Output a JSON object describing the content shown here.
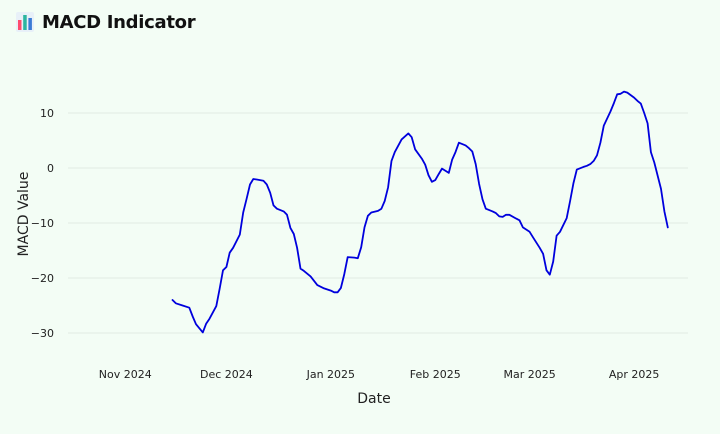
{
  "header": {
    "title": "MACD Indicator",
    "icon": "bar-chart-icon"
  },
  "colors": {
    "line": "#0000dd",
    "grid": "#e2ece4",
    "background": "#f3fdf5"
  },
  "chart_data": {
    "type": "line",
    "title": "",
    "xlabel": "Date",
    "ylabel": "MACD Value",
    "grid": true,
    "xlim": [
      "2024-10-15",
      "2025-04-17"
    ],
    "ylim": [
      -34,
      16
    ],
    "x_ticks": [
      {
        "date": "2024-11-01",
        "label": "Nov 2024"
      },
      {
        "date": "2024-12-01",
        "label": "Dec 2024"
      },
      {
        "date": "2025-01-01",
        "label": "Jan 2025"
      },
      {
        "date": "2025-02-01",
        "label": "Feb 2025"
      },
      {
        "date": "2025-03-01",
        "label": "Mar 2025"
      },
      {
        "date": "2025-04-01",
        "label": "Apr 2025"
      }
    ],
    "y_ticks": [
      {
        "value": 10,
        "label": "10"
      },
      {
        "value": 0,
        "label": "0"
      },
      {
        "value": -10,
        "label": "−10"
      },
      {
        "value": -20,
        "label": "−20"
      },
      {
        "value": -30,
        "label": "−30"
      }
    ],
    "series": [
      {
        "color": "#0000dd",
        "points": [
          [
            "2024-11-15",
            -24.0
          ],
          [
            "2024-11-16",
            -24.6
          ],
          [
            "2024-11-18",
            -25.0
          ],
          [
            "2024-11-20",
            -25.4
          ],
          [
            "2024-11-21",
            -27.0
          ],
          [
            "2024-11-22",
            -28.4
          ],
          [
            "2024-11-24",
            -29.9
          ],
          [
            "2024-11-25",
            -28.3
          ],
          [
            "2024-11-26",
            -27.4
          ],
          [
            "2024-11-28",
            -25.1
          ],
          [
            "2024-11-29",
            -22.0
          ],
          [
            "2024-11-30",
            -18.6
          ],
          [
            "2024-12-01",
            -18.0
          ],
          [
            "2024-12-02",
            -15.4
          ],
          [
            "2024-12-03",
            -14.5
          ],
          [
            "2024-12-05",
            -12.1
          ],
          [
            "2024-12-06",
            -8.1
          ],
          [
            "2024-12-07",
            -5.6
          ],
          [
            "2024-12-08",
            -3.0
          ],
          [
            "2024-12-09",
            -2.0
          ],
          [
            "2024-12-10",
            -2.1
          ],
          [
            "2024-12-11",
            -2.2
          ],
          [
            "2024-12-12",
            -2.3
          ],
          [
            "2024-12-13",
            -3.0
          ],
          [
            "2024-12-14",
            -4.5
          ],
          [
            "2024-12-15",
            -6.8
          ],
          [
            "2024-12-16",
            -7.4
          ],
          [
            "2024-12-18",
            -7.9
          ],
          [
            "2024-12-19",
            -8.5
          ],
          [
            "2024-12-20",
            -10.9
          ],
          [
            "2024-12-21",
            -12.0
          ],
          [
            "2024-12-22",
            -14.5
          ],
          [
            "2024-12-23",
            -18.3
          ],
          [
            "2024-12-24",
            -18.7
          ],
          [
            "2024-12-26",
            -19.7
          ],
          [
            "2024-12-27",
            -20.5
          ],
          [
            "2024-12-28",
            -21.3
          ],
          [
            "2024-12-30",
            -21.9
          ],
          [
            "2025-01-01",
            -22.3
          ],
          [
            "2025-01-02",
            -22.6
          ],
          [
            "2025-01-03",
            -22.6
          ],
          [
            "2025-01-04",
            -21.8
          ],
          [
            "2025-01-05",
            -19.3
          ],
          [
            "2025-01-06",
            -16.2
          ],
          [
            "2025-01-08",
            -16.3
          ],
          [
            "2025-01-09",
            -16.4
          ],
          [
            "2025-01-10",
            -14.4
          ],
          [
            "2025-01-11",
            -10.8
          ],
          [
            "2025-01-12",
            -8.7
          ],
          [
            "2025-01-13",
            -8.1
          ],
          [
            "2025-01-15",
            -7.8
          ],
          [
            "2025-01-16",
            -7.4
          ],
          [
            "2025-01-17",
            -6.0
          ],
          [
            "2025-01-18",
            -3.5
          ],
          [
            "2025-01-19",
            1.3
          ],
          [
            "2025-01-20",
            2.9
          ],
          [
            "2025-01-22",
            5.2
          ],
          [
            "2025-01-24",
            6.3
          ],
          [
            "2025-01-25",
            5.6
          ],
          [
            "2025-01-26",
            3.4
          ],
          [
            "2025-01-28",
            1.7
          ],
          [
            "2025-01-29",
            0.6
          ],
          [
            "2025-01-30",
            -1.3
          ],
          [
            "2025-01-31",
            -2.5
          ],
          [
            "2025-02-01",
            -2.2
          ],
          [
            "2025-02-02",
            -1.1
          ],
          [
            "2025-02-03",
            -0.1
          ],
          [
            "2025-02-05",
            -0.9
          ],
          [
            "2025-02-06",
            1.5
          ],
          [
            "2025-02-07",
            2.9
          ],
          [
            "2025-02-08",
            4.6
          ],
          [
            "2025-02-10",
            4.1
          ],
          [
            "2025-02-11",
            3.6
          ],
          [
            "2025-02-12",
            3.0
          ],
          [
            "2025-02-13",
            0.7
          ],
          [
            "2025-02-14",
            -2.9
          ],
          [
            "2025-02-15",
            -5.7
          ],
          [
            "2025-02-16",
            -7.4
          ],
          [
            "2025-02-18",
            -7.9
          ],
          [
            "2025-02-19",
            -8.2
          ],
          [
            "2025-02-20",
            -8.8
          ],
          [
            "2025-02-21",
            -8.9
          ],
          [
            "2025-02-22",
            -8.5
          ],
          [
            "2025-02-23",
            -8.5
          ],
          [
            "2025-02-25",
            -9.2
          ],
          [
            "2025-02-26",
            -9.5
          ],
          [
            "2025-02-27",
            -10.8
          ],
          [
            "2025-03-01",
            -11.6
          ],
          [
            "2025-03-02",
            -12.6
          ],
          [
            "2025-03-04",
            -14.5
          ],
          [
            "2025-03-05",
            -15.6
          ],
          [
            "2025-03-06",
            -18.6
          ],
          [
            "2025-03-07",
            -19.4
          ],
          [
            "2025-03-08",
            -17.0
          ],
          [
            "2025-03-09",
            -12.3
          ],
          [
            "2025-03-10",
            -11.6
          ],
          [
            "2025-03-12",
            -9.1
          ],
          [
            "2025-03-13",
            -6.0
          ],
          [
            "2025-03-14",
            -2.8
          ],
          [
            "2025-03-15",
            -0.3
          ],
          [
            "2025-03-17",
            0.2
          ],
          [
            "2025-03-18",
            0.4
          ],
          [
            "2025-03-19",
            0.7
          ],
          [
            "2025-03-20",
            1.3
          ],
          [
            "2025-03-21",
            2.3
          ],
          [
            "2025-03-22",
            4.6
          ],
          [
            "2025-03-23",
            7.7
          ],
          [
            "2025-03-25",
            10.3
          ],
          [
            "2025-03-26",
            11.8
          ],
          [
            "2025-03-27",
            13.4
          ],
          [
            "2025-03-28",
            13.5
          ],
          [
            "2025-03-29",
            13.9
          ],
          [
            "2025-03-30",
            13.7
          ],
          [
            "2025-04-01",
            12.8
          ],
          [
            "2025-04-02",
            12.2
          ],
          [
            "2025-04-03",
            11.7
          ],
          [
            "2025-04-04",
            10.0
          ],
          [
            "2025-04-05",
            8.1
          ],
          [
            "2025-04-06",
            2.9
          ],
          [
            "2025-04-07",
            1.0
          ],
          [
            "2025-04-09",
            -3.8
          ],
          [
            "2025-04-10",
            -7.9
          ],
          [
            "2025-04-11",
            -10.8
          ]
        ]
      }
    ]
  }
}
